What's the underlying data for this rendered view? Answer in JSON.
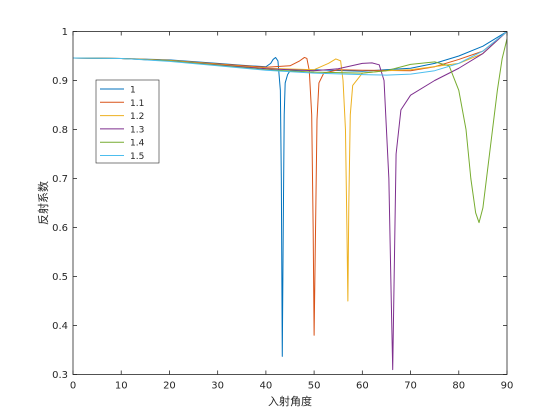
{
  "chart_data": {
    "type": "line",
    "xlabel": "入射角度",
    "ylabel": "反射系数",
    "xlim": [
      0,
      90
    ],
    "ylim": [
      0.3,
      1
    ],
    "xticks": [
      "0",
      "10",
      "20",
      "30",
      "40",
      "50",
      "60",
      "70",
      "80",
      "90"
    ],
    "yticks": [
      "0.3",
      "0.4",
      "0.5",
      "0.6",
      "0.7",
      "0.8",
      "0.9",
      "1"
    ],
    "grid": false,
    "legend_position": "upper-left",
    "series": [
      {
        "name": "1",
        "color": "#0072BD",
        "x": [
          0,
          10,
          20,
          30,
          35,
          40,
          41,
          41.5,
          42,
          42.5,
          43,
          43.2,
          43.4,
          43.6,
          43.8,
          44,
          44.5,
          45,
          50,
          60,
          70,
          75,
          80,
          85,
          90
        ],
        "y": [
          0.946,
          0.945,
          0.942,
          0.935,
          0.931,
          0.928,
          0.935,
          0.943,
          0.947,
          0.94,
          0.88,
          0.7,
          0.337,
          0.6,
          0.83,
          0.895,
          0.912,
          0.92,
          0.922,
          0.919,
          0.925,
          0.935,
          0.95,
          0.97,
          1.0
        ]
      },
      {
        "name": "1.1",
        "color": "#D95319",
        "x": [
          0,
          10,
          20,
          30,
          40,
          45,
          47,
          48,
          48.5,
          49,
          49.5,
          49.8,
          50,
          50.3,
          50.6,
          51,
          52,
          55,
          60,
          70,
          75,
          80,
          85,
          90
        ],
        "y": [
          0.946,
          0.945,
          0.941,
          0.934,
          0.927,
          0.93,
          0.94,
          0.947,
          0.945,
          0.92,
          0.83,
          0.6,
          0.38,
          0.6,
          0.82,
          0.895,
          0.915,
          0.922,
          0.921,
          0.92,
          0.928,
          0.943,
          0.96,
          1.0
        ]
      },
      {
        "name": "1.2",
        "color": "#EDB120",
        "x": [
          0,
          10,
          20,
          30,
          40,
          50,
          53,
          54.5,
          55.5,
          56,
          56.5,
          56.8,
          57,
          57.2,
          57.5,
          58,
          60,
          65,
          70,
          80,
          85,
          90
        ],
        "y": [
          0.946,
          0.945,
          0.941,
          0.933,
          0.925,
          0.922,
          0.935,
          0.944,
          0.94,
          0.9,
          0.8,
          0.6,
          0.45,
          0.65,
          0.83,
          0.89,
          0.915,
          0.92,
          0.922,
          0.935,
          0.955,
          1.0
        ]
      },
      {
        "name": "1.3",
        "color": "#7E2F8E",
        "x": [
          0,
          10,
          20,
          30,
          40,
          50,
          55,
          60,
          62,
          63.5,
          64.5,
          65.5,
          66,
          66.3,
          66.6,
          67,
          68,
          70,
          75,
          80,
          85,
          90
        ],
        "y": [
          0.946,
          0.945,
          0.94,
          0.932,
          0.924,
          0.92,
          0.924,
          0.935,
          0.936,
          0.932,
          0.9,
          0.7,
          0.45,
          0.31,
          0.5,
          0.75,
          0.84,
          0.87,
          0.9,
          0.925,
          0.955,
          1.0
        ]
      },
      {
        "name": "1.4",
        "color": "#77AC30",
        "x": [
          0,
          10,
          20,
          30,
          40,
          50,
          60,
          65,
          70,
          75,
          78,
          80,
          81.5,
          82.5,
          83.5,
          84.2,
          85,
          86,
          87,
          88,
          89,
          90
        ],
        "y": [
          0.946,
          0.945,
          0.94,
          0.931,
          0.922,
          0.917,
          0.915,
          0.92,
          0.933,
          0.938,
          0.93,
          0.88,
          0.8,
          0.7,
          0.63,
          0.61,
          0.64,
          0.72,
          0.8,
          0.88,
          0.945,
          0.985
        ]
      },
      {
        "name": "1.5",
        "color": "#4DBEEE",
        "x": [
          0,
          10,
          20,
          30,
          40,
          50,
          60,
          65,
          70,
          75,
          80,
          85,
          90
        ],
        "y": [
          0.946,
          0.945,
          0.939,
          0.93,
          0.921,
          0.915,
          0.912,
          0.911,
          0.913,
          0.92,
          0.935,
          0.96,
          1.0
        ]
      }
    ]
  }
}
